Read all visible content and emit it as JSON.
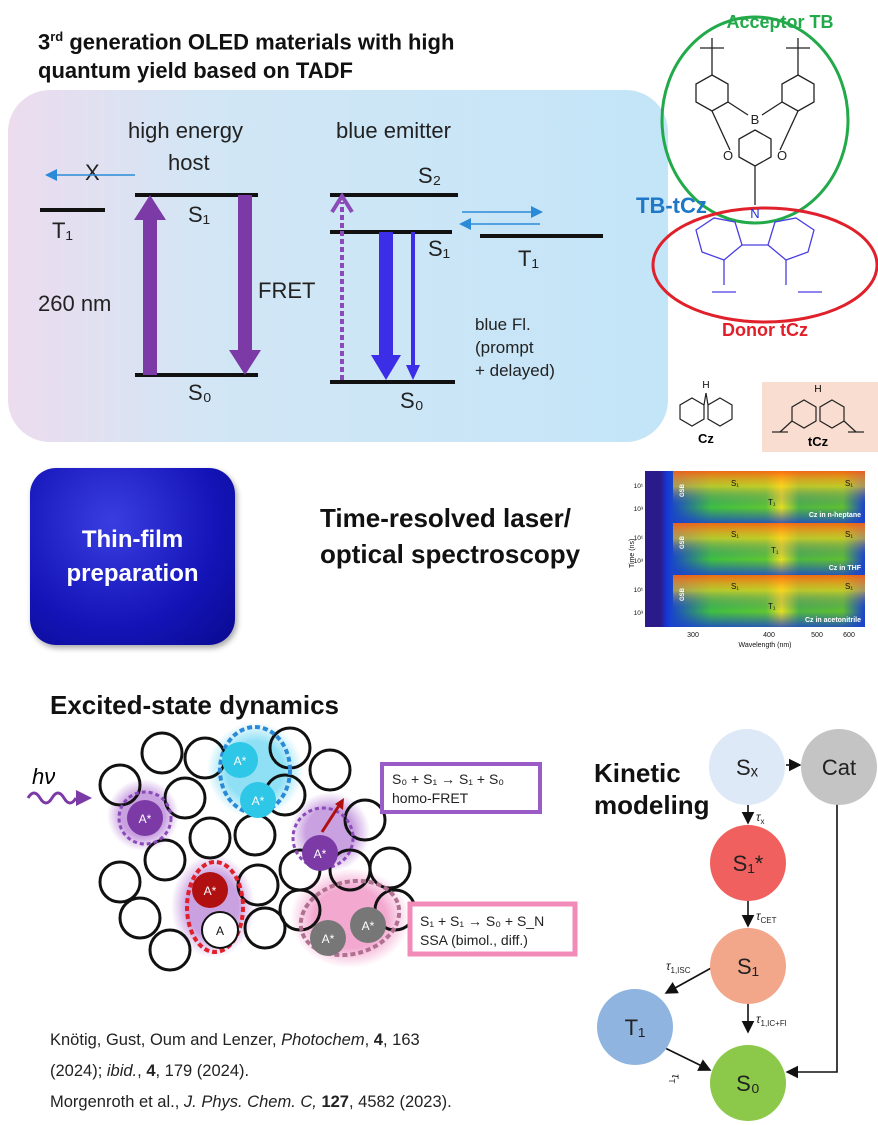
{
  "title": {
    "line1_pre": "3",
    "line1_sup": "rd",
    "line1_post": " generation OLED materials with high",
    "line2": "quantum yield based on TADF"
  },
  "energy_diagram": {
    "host_label_1": "high energy",
    "host_label_2": "host",
    "emitter_label": "blue emitter",
    "x_mark": "X",
    "t1_left": "T₁",
    "s1_host": "S₁",
    "s0_host": "S₀",
    "excitation": "260 nm",
    "fret": "FRET",
    "s2_emitter": "S₂",
    "s1_emitter": "S₁",
    "s0_emitter": "S₀",
    "t1_right": "T₁",
    "emission_1": "blue Fl.",
    "emission_2": "(prompt",
    "emission_3": "+ delayed)"
  },
  "molecule": {
    "acceptor": "Acceptor TB",
    "name": "TB-tCz",
    "donor": "Donor tCz",
    "atom_b": "B",
    "atom_o": "O",
    "atom_n": "N",
    "cz_label": "Cz",
    "tcz_label": "tCz",
    "h_label": "H",
    "colors": {
      "acceptor": "#22aa4a",
      "donor": "#e0202a",
      "name": "#1f77c8"
    }
  },
  "thin_film": {
    "line1": "Thin-film",
    "line2": "preparation"
  },
  "spectroscopy": {
    "heading1": "Time-resolved laser/",
    "heading2": "optical spectroscopy",
    "ylabel": "Time (ns)",
    "xlabel": "Wavelength (nm)",
    "xticks": [
      "300",
      "400",
      "500",
      "600"
    ],
    "yticks": [
      "10¹",
      "10³"
    ],
    "gsb": "GSB",
    "s1": "S₁",
    "t1": "T₁",
    "panels": [
      "Cz in n-heptane",
      "Cz in THF",
      "Cz in acetonitrile"
    ]
  },
  "dynamics": {
    "heading": "Excited-state dynamics",
    "hv": "hν",
    "excited": "A*",
    "ground": "A",
    "fret_eq": "S₀ + S₁ → S₁ + S₀",
    "fret_name": "homo-FRET",
    "ssa_eq": "S₁ + S₁ → S₀ + S_N",
    "ssa_name": "SSA (bimol.,  diff.)"
  },
  "kinetic": {
    "heading1": "Kinetic",
    "heading2": "modeling",
    "nodes": {
      "sx": "Sₓ",
      "cat": "Cat",
      "s1star": "S₁*",
      "s1": "S₁",
      "t1": "T₁",
      "s0": "S₀"
    },
    "rates": {
      "tau": "τ",
      "x": "x",
      "cet": "CET",
      "isc": "1,ISC",
      "icfl": "1,IC+Fl",
      "t": "T"
    },
    "colors": {
      "sx": "#dde9f7",
      "cat": "#c4c4c4",
      "s1star": "#f0605e",
      "s1": "#f2a68a",
      "t1": "#8fb4df",
      "s0": "#8cc94a"
    }
  },
  "citations": {
    "line1_a": "Knötig, Gust, Oum and Lenzer, ",
    "line1_journal": "Photochem",
    "line1_b": ", ",
    "line1_vol": "4",
    "line1_c": ", 163",
    "line2_a": "(2024); ",
    "line2_ibid": "ibid.",
    "line2_b": ", ",
    "line2_vol": "4",
    "line2_c": ", 179 (2024).",
    "line3_a": "Morgenroth et al., ",
    "line3_journal": "J. Phys. Chem. C,",
    "line3_b": " ",
    "line3_vol": "127",
    "line3_c": ", 4582 (2023)."
  }
}
